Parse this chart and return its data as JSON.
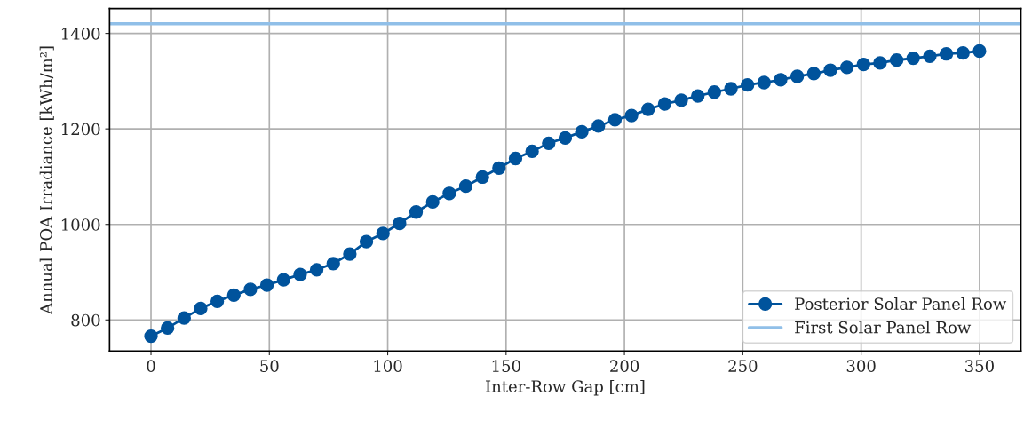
{
  "chart_data": {
    "type": "line",
    "xlabel": "Inter-Row Gap [cm]",
    "ylabel": "Annual POA Irradiance [kWh/m²]",
    "x": [
      0,
      7,
      14,
      21,
      28,
      35,
      42,
      49,
      56,
      63,
      70,
      77,
      84,
      91,
      98,
      105,
      112,
      119,
      126,
      133,
      140,
      147,
      154,
      161,
      168,
      175,
      182,
      189,
      196,
      203,
      210,
      217,
      224,
      231,
      238,
      245,
      252,
      259,
      266,
      273,
      280,
      287,
      294,
      301,
      308,
      315,
      322,
      329,
      336,
      343,
      350
    ],
    "series": [
      {
        "name": "Posterior Solar Panel Row",
        "color": "#00539c",
        "values": [
          766,
          783,
          804,
          824,
          839,
          852,
          864,
          873,
          884,
          895,
          905,
          918,
          938,
          964,
          981,
          1002,
          1026,
          1047,
          1065,
          1080,
          1099,
          1118,
          1138,
          1153,
          1170,
          1181,
          1194,
          1206,
          1219,
          1228,
          1241,
          1252,
          1260,
          1269,
          1277,
          1284,
          1292,
          1297,
          1303,
          1310,
          1316,
          1323,
          1329,
          1335,
          1338,
          1344,
          1348,
          1352,
          1357,
          1359,
          1363
        ]
      }
    ],
    "ref_lines": [
      {
        "axis": "y",
        "value": 1420,
        "label": "First Solar Panel Row",
        "color": "#90bfe8",
        "line_style": "solid"
      }
    ],
    "xlim": [
      -17.5,
      367.5
    ],
    "ylim": [
      735,
      1452
    ],
    "xticks": [
      0,
      50,
      100,
      150,
      200,
      250,
      300,
      350
    ],
    "yticks": [
      800,
      1000,
      1200,
      1400
    ],
    "grid": true,
    "legend": "bottom right",
    "marker": "circle",
    "line_style": "solid"
  }
}
